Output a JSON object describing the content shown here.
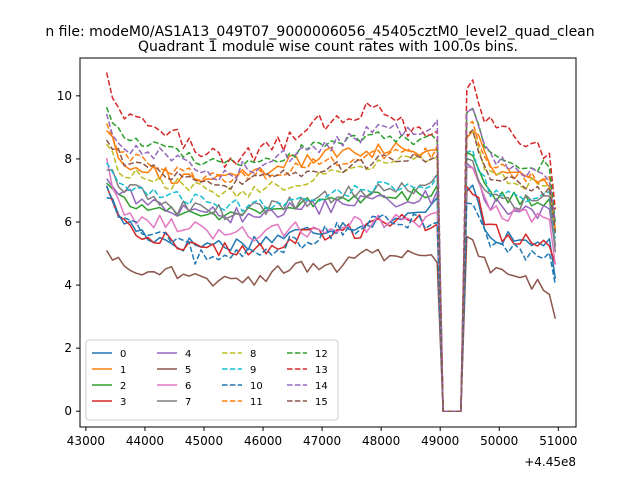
{
  "chart_data": {
    "type": "line",
    "suptitle": "n file: modeM0/AS1A13_049T07_9000006056_45405cztM0_level2_quad_clean",
    "title": "Quadrant 1 module wise count rates with 100.0s bins.",
    "xlabel": "",
    "ylabel": "",
    "x_offset_label": "+4.45e8",
    "xlim": [
      42900,
      51300
    ],
    "ylim": [
      -0.5,
      11.2
    ],
    "xticks": [
      43000,
      44000,
      45000,
      46000,
      47000,
      48000,
      49000,
      50000,
      51000
    ],
    "xtick_labels": [
      "43000",
      "44000",
      "45000",
      "46000",
      "47000",
      "48000",
      "49000",
      "50000",
      "51000"
    ],
    "yticks": [
      0,
      2,
      4,
      6,
      8,
      10
    ],
    "ytick_labels": [
      "0",
      "2",
      "4",
      "6",
      "8",
      "10"
    ],
    "legend_position": "lower-left",
    "x_start": 43350,
    "x_step": 100,
    "gap": {
      "from": 48950,
      "to": 49350,
      "value": 0
    },
    "series": [
      {
        "name": "0",
        "color": "#1f77b4",
        "style": "solid",
        "knots": [
          [
            43350,
            6.9
          ],
          [
            43600,
            6.1
          ],
          [
            44000,
            5.6
          ],
          [
            44600,
            5.3
          ],
          [
            45500,
            5.3
          ],
          [
            46200,
            5.5
          ],
          [
            47000,
            5.8
          ],
          [
            47800,
            6.0
          ],
          [
            48700,
            6.2
          ],
          [
            48850,
            6.5
          ],
          [
            49550,
            7.3
          ],
          [
            49800,
            5.6
          ],
          [
            50500,
            5.3
          ],
          [
            50850,
            5.4
          ],
          [
            50950,
            4.3
          ]
        ],
        "noise": 0.25
      },
      {
        "name": "1",
        "color": "#ff7f0e",
        "style": "solid",
        "knots": [
          [
            43350,
            9.0
          ],
          [
            43600,
            8.0
          ],
          [
            44500,
            7.4
          ],
          [
            45300,
            7.3
          ],
          [
            46300,
            7.8
          ],
          [
            47300,
            8.2
          ],
          [
            48000,
            8.3
          ],
          [
            48850,
            8.3
          ],
          [
            49550,
            9.0
          ],
          [
            49800,
            7.8
          ],
          [
            50500,
            7.3
          ],
          [
            50850,
            7.3
          ],
          [
            50950,
            5.8
          ]
        ],
        "noise": 0.25
      },
      {
        "name": "2",
        "color": "#2ca02c",
        "style": "solid",
        "knots": [
          [
            43350,
            7.3
          ],
          [
            43600,
            6.6
          ],
          [
            44300,
            6.4
          ],
          [
            45000,
            6.2
          ],
          [
            46000,
            6.4
          ],
          [
            47000,
            6.7
          ],
          [
            48000,
            6.8
          ],
          [
            48850,
            6.9
          ],
          [
            49550,
            8.2
          ],
          [
            49800,
            6.9
          ],
          [
            50500,
            6.7
          ],
          [
            50850,
            6.7
          ],
          [
            50950,
            5.2
          ]
        ],
        "noise": 0.2
      },
      {
        "name": "3",
        "color": "#d62728",
        "style": "solid",
        "knots": [
          [
            43350,
            7.2
          ],
          [
            43600,
            5.9
          ],
          [
            44500,
            5.4
          ],
          [
            45200,
            5.1
          ],
          [
            46000,
            5.2
          ],
          [
            47000,
            5.6
          ],
          [
            48000,
            5.9
          ],
          [
            48850,
            6.0
          ],
          [
            49550,
            7.0
          ],
          [
            49800,
            5.7
          ],
          [
            50500,
            5.4
          ],
          [
            50850,
            5.5
          ],
          [
            50950,
            4.5
          ]
        ],
        "noise": 0.3
      },
      {
        "name": "4",
        "color": "#9467bd",
        "style": "solid",
        "knots": [
          [
            43350,
            7.4
          ],
          [
            43600,
            6.9
          ],
          [
            44500,
            6.4
          ],
          [
            45500,
            6.2
          ],
          [
            46500,
            6.4
          ],
          [
            47500,
            6.6
          ],
          [
            48300,
            6.7
          ],
          [
            48850,
            6.8
          ],
          [
            49550,
            7.8
          ],
          [
            49800,
            6.6
          ],
          [
            50500,
            6.3
          ],
          [
            50850,
            6.4
          ],
          [
            50950,
            5.0
          ]
        ],
        "noise": 0.25
      },
      {
        "name": "5",
        "color": "#8c564b",
        "style": "solid",
        "knots": [
          [
            43350,
            5.1
          ],
          [
            43600,
            4.6
          ],
          [
            44500,
            4.4
          ],
          [
            45300,
            4.1
          ],
          [
            45800,
            4.1
          ],
          [
            46500,
            4.6
          ],
          [
            47300,
            4.6
          ],
          [
            47800,
            5.0
          ],
          [
            48500,
            4.9
          ],
          [
            48850,
            4.8
          ],
          [
            49550,
            5.5
          ],
          [
            49800,
            4.5
          ],
          [
            50500,
            4.1
          ],
          [
            50850,
            3.9
          ],
          [
            50950,
            3.1
          ]
        ],
        "noise": 0.2
      },
      {
        "name": "6",
        "color": "#e377c2",
        "style": "solid",
        "knots": [
          [
            43350,
            8.0
          ],
          [
            43600,
            6.3
          ],
          [
            44500,
            6.0
          ],
          [
            45300,
            5.6
          ],
          [
            46000,
            5.7
          ],
          [
            47000,
            5.8
          ],
          [
            48000,
            6.0
          ],
          [
            48850,
            6.1
          ],
          [
            49550,
            7.8
          ],
          [
            49800,
            6.4
          ],
          [
            50500,
            6.1
          ],
          [
            50850,
            6.1
          ],
          [
            50950,
            4.8
          ]
        ],
        "noise": 0.3
      },
      {
        "name": "7",
        "color": "#7f7f7f",
        "style": "solid",
        "knots": [
          [
            43350,
            7.6
          ],
          [
            43600,
            7.1
          ],
          [
            44500,
            6.5
          ],
          [
            45500,
            6.3
          ],
          [
            46500,
            6.6
          ],
          [
            47500,
            6.9
          ],
          [
            48300,
            7.1
          ],
          [
            48850,
            7.2
          ],
          [
            49550,
            8.0
          ],
          [
            49800,
            6.8
          ],
          [
            50500,
            6.6
          ],
          [
            50850,
            6.6
          ],
          [
            50950,
            5.1
          ]
        ],
        "noise": 0.25
      },
      {
        "name": "8",
        "color": "#bcbd22",
        "style": "dashed",
        "knots": [
          [
            43350,
            8.4
          ],
          [
            43600,
            7.6
          ],
          [
            44500,
            7.2
          ],
          [
            45500,
            6.9
          ],
          [
            46500,
            7.2
          ],
          [
            47500,
            7.7
          ],
          [
            48300,
            7.9
          ],
          [
            48850,
            8.0
          ],
          [
            49550,
            8.9
          ],
          [
            49800,
            7.5
          ],
          [
            50500,
            7.2
          ],
          [
            50850,
            7.2
          ],
          [
            50950,
            5.7
          ]
        ],
        "noise": 0.2
      },
      {
        "name": "9",
        "color": "#17becf",
        "style": "dashed",
        "knots": [
          [
            43350,
            7.8
          ],
          [
            43600,
            7.0
          ],
          [
            44500,
            6.8
          ],
          [
            45500,
            6.5
          ],
          [
            46500,
            6.7
          ],
          [
            47500,
            7.0
          ],
          [
            48300,
            7.2
          ],
          [
            48850,
            7.2
          ],
          [
            49550,
            8.3
          ],
          [
            49800,
            7.0
          ],
          [
            50500,
            6.8
          ],
          [
            50850,
            6.8
          ],
          [
            50950,
            5.4
          ]
        ],
        "noise": 0.2
      },
      {
        "name": "10",
        "color": "#1f77b4",
        "style": "dashed",
        "knots": [
          [
            43350,
            7.0
          ],
          [
            43600,
            6.0
          ],
          [
            44500,
            5.3
          ],
          [
            45000,
            4.8
          ],
          [
            45800,
            5.0
          ],
          [
            46600,
            5.4
          ],
          [
            47500,
            5.8
          ],
          [
            48300,
            6.0
          ],
          [
            48850,
            6.1
          ],
          [
            49550,
            6.6
          ],
          [
            49800,
            5.4
          ],
          [
            50500,
            5.0
          ],
          [
            50850,
            5.1
          ],
          [
            50950,
            3.8
          ]
        ],
        "noise": 0.3
      },
      {
        "name": "11",
        "color": "#ff7f0e",
        "style": "dashed",
        "knots": [
          [
            43350,
            9.0
          ],
          [
            43600,
            8.2
          ],
          [
            44500,
            7.6
          ],
          [
            45500,
            7.4
          ],
          [
            46500,
            7.7
          ],
          [
            47500,
            8.0
          ],
          [
            48300,
            8.2
          ],
          [
            48850,
            8.2
          ],
          [
            49550,
            9.2
          ],
          [
            49800,
            7.8
          ],
          [
            50500,
            7.4
          ],
          [
            50850,
            7.3
          ],
          [
            50950,
            5.9
          ]
        ],
        "noise": 0.2
      },
      {
        "name": "12",
        "color": "#2ca02c",
        "style": "dashed",
        "knots": [
          [
            43350,
            9.5
          ],
          [
            43600,
            8.7
          ],
          [
            44500,
            8.2
          ],
          [
            45300,
            7.8
          ],
          [
            46300,
            8.1
          ],
          [
            47300,
            8.6
          ],
          [
            48000,
            8.7
          ],
          [
            48850,
            8.6
          ],
          [
            49550,
            9.6
          ],
          [
            49800,
            8.2
          ],
          [
            50500,
            7.8
          ],
          [
            50850,
            7.8
          ],
          [
            50950,
            6.1
          ]
        ],
        "noise": 0.2
      },
      {
        "name": "13",
        "color": "#d62728",
        "style": "dashed",
        "knots": [
          [
            43350,
            10.5
          ],
          [
            43600,
            9.4
          ],
          [
            44500,
            8.8
          ],
          [
            45300,
            7.9
          ],
          [
            46000,
            8.2
          ],
          [
            47000,
            9.2
          ],
          [
            47800,
            9.6
          ],
          [
            48850,
            8.6
          ],
          [
            49550,
            10.5
          ],
          [
            49800,
            9.2
          ],
          [
            50500,
            8.5
          ],
          [
            50850,
            8.0
          ],
          [
            50950,
            6.5
          ]
        ],
        "noise": 0.3
      },
      {
        "name": "14",
        "color": "#9467bd",
        "style": "dashed",
        "knots": [
          [
            43350,
            9.2
          ],
          [
            43600,
            8.5
          ],
          [
            44500,
            8.0
          ],
          [
            45300,
            7.5
          ],
          [
            46300,
            8.0
          ],
          [
            47300,
            8.6
          ],
          [
            48000,
            8.9
          ],
          [
            48850,
            8.9
          ],
          [
            49550,
            9.6
          ],
          [
            49800,
            8.0
          ],
          [
            50500,
            7.5
          ],
          [
            50850,
            7.4
          ],
          [
            50950,
            6.0
          ]
        ],
        "noise": 0.25
      },
      {
        "name": "15",
        "color": "#8c564b",
        "style": "dashed",
        "knots": [
          [
            43350,
            8.8
          ],
          [
            43600,
            8.0
          ],
          [
            44500,
            7.5
          ],
          [
            45500,
            7.2
          ],
          [
            46500,
            7.5
          ],
          [
            47500,
            7.8
          ],
          [
            48300,
            8.0
          ],
          [
            48850,
            8.0
          ],
          [
            49550,
            8.9
          ],
          [
            49800,
            7.5
          ],
          [
            50500,
            7.1
          ],
          [
            50850,
            7.0
          ],
          [
            50950,
            5.6
          ]
        ],
        "noise": 0.2
      }
    ]
  }
}
